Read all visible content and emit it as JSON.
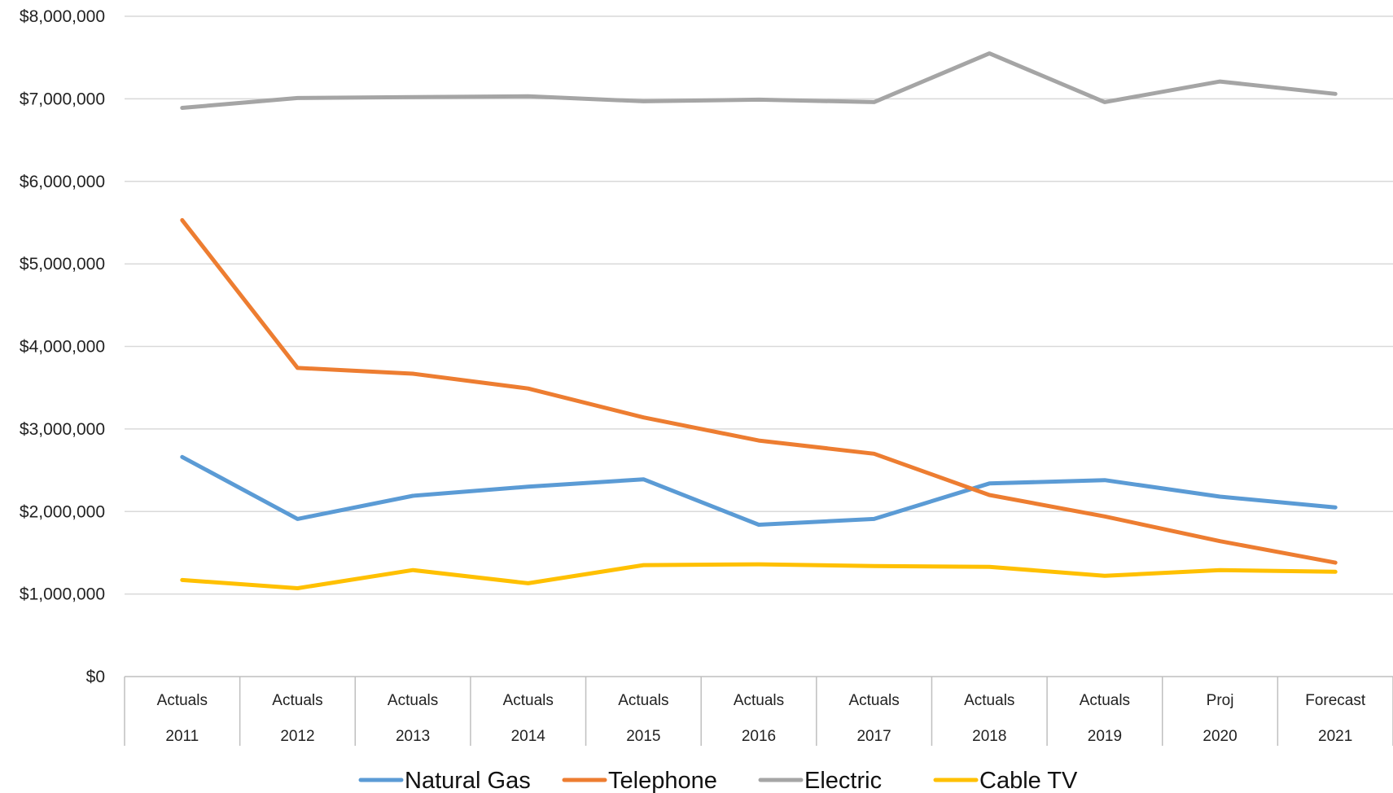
{
  "chart_data": {
    "type": "line",
    "title": "",
    "xlabel": "",
    "ylabel": "",
    "ylim": [
      0,
      8000000
    ],
    "y_ticks": [
      0,
      1000000,
      2000000,
      3000000,
      4000000,
      5000000,
      6000000,
      7000000,
      8000000
    ],
    "y_tick_labels": [
      "$0",
      "$1,000,000",
      "$2,000,000",
      "$3,000,000",
      "$4,000,000",
      "$5,000,000",
      "$6,000,000",
      "$7,000,000",
      "$8,000,000"
    ],
    "categories": [
      {
        "top": "Actuals",
        "bottom": "2011"
      },
      {
        "top": "Actuals",
        "bottom": "2012"
      },
      {
        "top": "Actuals",
        "bottom": "2013"
      },
      {
        "top": "Actuals",
        "bottom": "2014"
      },
      {
        "top": "Actuals",
        "bottom": "2015"
      },
      {
        "top": "Actuals",
        "bottom": "2016"
      },
      {
        "top": "Actuals",
        "bottom": "2017"
      },
      {
        "top": "Actuals",
        "bottom": "2018"
      },
      {
        "top": "Actuals",
        "bottom": "2019"
      },
      {
        "top": "Proj",
        "bottom": "2020"
      },
      {
        "top": "Forecast",
        "bottom": "2021"
      }
    ],
    "grid": true,
    "legend_position": "bottom",
    "series": [
      {
        "name": "Natural Gas",
        "color": "#5B9BD5",
        "values": [
          2660000,
          1910000,
          2190000,
          2300000,
          2390000,
          1840000,
          1910000,
          2340000,
          2380000,
          2180000,
          2050000
        ]
      },
      {
        "name": "Telephone",
        "color": "#ED7D31",
        "values": [
          5530000,
          3740000,
          3670000,
          3490000,
          3140000,
          2860000,
          2700000,
          2200000,
          1940000,
          1640000,
          1380000
        ]
      },
      {
        "name": "Electric",
        "color": "#A5A5A5",
        "values": [
          6890000,
          7010000,
          7020000,
          7030000,
          6970000,
          6990000,
          6960000,
          7550000,
          6960000,
          7210000,
          7060000
        ]
      },
      {
        "name": "Cable TV",
        "color": "#FFC000",
        "values": [
          1170000,
          1070000,
          1290000,
          1130000,
          1350000,
          1360000,
          1340000,
          1330000,
          1220000,
          1290000,
          1270000
        ]
      }
    ]
  }
}
